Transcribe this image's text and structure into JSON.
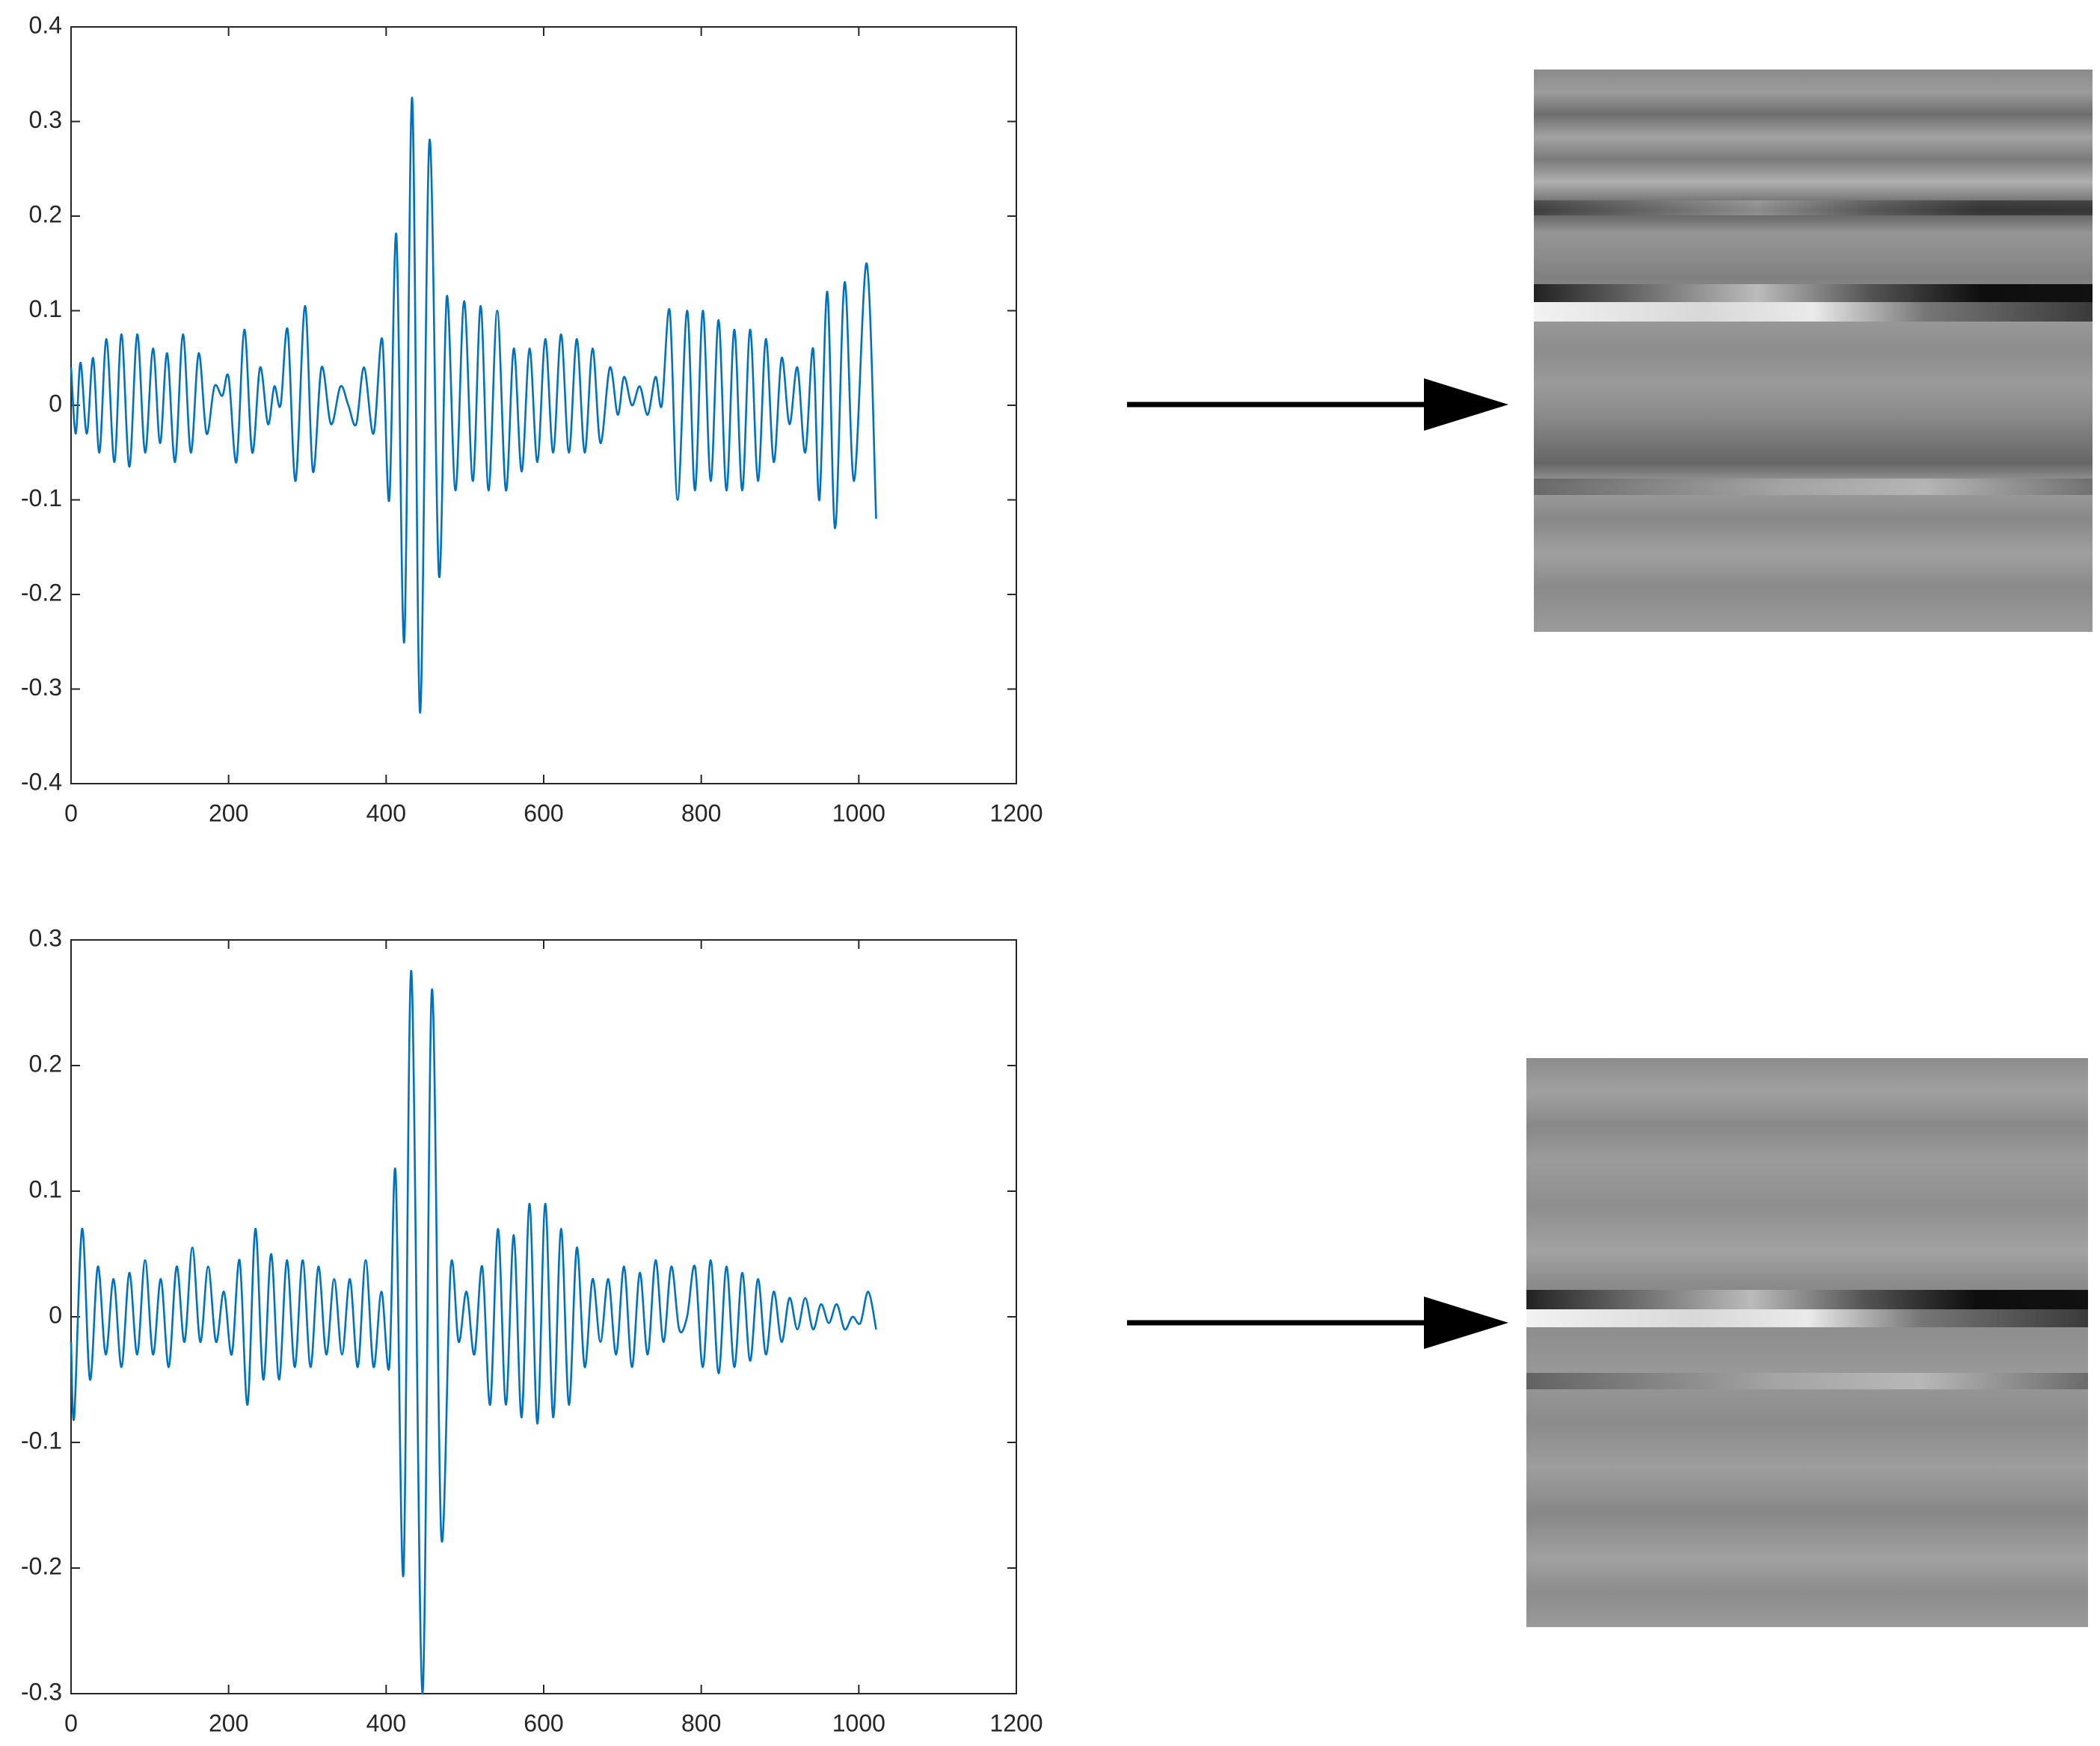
{
  "chart_data": [
    {
      "type": "line",
      "color": "#0072bd",
      "xlim": [
        0,
        1200
      ],
      "xticks": [
        0,
        200,
        400,
        600,
        800,
        1000,
        1200
      ],
      "ylim": [
        -0.4,
        0.4
      ],
      "yticks": [
        -0.4,
        -0.3,
        -0.2,
        -0.1,
        0,
        0.1,
        0.2,
        0.3,
        0.4
      ],
      "x": [
        0,
        6,
        12,
        20,
        28,
        36,
        45,
        55,
        64,
        74,
        84,
        94,
        104,
        113,
        122,
        132,
        142,
        152,
        162,
        172,
        182,
        192,
        200,
        210,
        220,
        230,
        240,
        250,
        258,
        266,
        275,
        285,
        297,
        307,
        318,
        330,
        342,
        352,
        362,
        372,
        384,
        395,
        404,
        413,
        423,
        433,
        443,
        455,
        467,
        477,
        488,
        499,
        510,
        520,
        530,
        541,
        552,
        562,
        572,
        582,
        592,
        602,
        612,
        622,
        632,
        642,
        652,
        662,
        672,
        684,
        694,
        702,
        712,
        722,
        732,
        742,
        750,
        760,
        770,
        782,
        792,
        802,
        812,
        822,
        832,
        842,
        852,
        862,
        872,
        882,
        892,
        902,
        912,
        922,
        932,
        942,
        950,
        960,
        970,
        982,
        994,
        1010,
        1022
      ],
      "values": [
        0.04,
        -0.03,
        0.045,
        -0.03,
        0.05,
        -0.05,
        0.07,
        -0.06,
        0.075,
        -0.065,
        0.075,
        -0.05,
        0.06,
        -0.04,
        0.055,
        -0.06,
        0.075,
        -0.05,
        0.055,
        -0.03,
        0.02,
        0.01,
        0.03,
        -0.06,
        0.08,
        -0.05,
        0.04,
        -0.02,
        0.02,
        0.0,
        0.08,
        -0.08,
        0.105,
        -0.07,
        0.04,
        -0.02,
        0.02,
        0.0,
        -0.02,
        0.04,
        -0.03,
        0.07,
        -0.1,
        0.18,
        -0.25,
        0.325,
        -0.325,
        0.28,
        -0.18,
        0.115,
        -0.09,
        0.11,
        -0.08,
        0.105,
        -0.09,
        0.1,
        -0.09,
        0.06,
        -0.07,
        0.06,
        -0.06,
        0.07,
        -0.05,
        0.075,
        -0.05,
        0.07,
        -0.05,
        0.06,
        -0.04,
        0.04,
        -0.01,
        0.03,
        0.0,
        0.02,
        -0.01,
        0.03,
        0.0,
        0.1,
        -0.1,
        0.1,
        -0.09,
        0.1,
        -0.08,
        0.09,
        -0.09,
        0.08,
        -0.09,
        0.08,
        -0.08,
        0.07,
        -0.06,
        0.05,
        -0.02,
        0.04,
        -0.05,
        0.06,
        -0.1,
        0.12,
        -0.13,
        0.13,
        -0.08,
        0.15,
        -0.12
      ]
    },
    {
      "type": "line",
      "color": "#0072bd",
      "xlim": [
        0,
        1200
      ],
      "xticks": [
        0,
        200,
        400,
        600,
        800,
        1000,
        1200
      ],
      "ylim": [
        -0.3,
        0.3
      ],
      "yticks": [
        -0.3,
        -0.2,
        -0.1,
        0,
        0.1,
        0.2,
        0.3
      ],
      "x": [
        0,
        4,
        14,
        24,
        34,
        44,
        54,
        64,
        74,
        84,
        94,
        104,
        114,
        124,
        134,
        144,
        154,
        164,
        174,
        184,
        194,
        204,
        214,
        224,
        234,
        244,
        254,
        264,
        274,
        284,
        294,
        304,
        314,
        324,
        334,
        344,
        354,
        364,
        374,
        384,
        394,
        404,
        412,
        422,
        432,
        446,
        458,
        470,
        482,
        492,
        502,
        512,
        522,
        532,
        542,
        552,
        562,
        572,
        582,
        592,
        602,
        612,
        622,
        632,
        642,
        652,
        662,
        672,
        682,
        692,
        702,
        712,
        722,
        732,
        742,
        752,
        762,
        772,
        782,
        792,
        802,
        812,
        822,
        832,
        842,
        852,
        862,
        872,
        882,
        892,
        902,
        912,
        922,
        932,
        942,
        952,
        962,
        972,
        982,
        992,
        1002,
        1012,
        1022
      ],
      "values": [
        -0.02,
        -0.08,
        0.07,
        -0.05,
        0.04,
        -0.03,
        0.03,
        -0.04,
        0.035,
        -0.03,
        0.045,
        -0.03,
        0.03,
        -0.04,
        0.04,
        -0.02,
        0.055,
        -0.02,
        0.04,
        -0.02,
        0.02,
        -0.03,
        0.045,
        -0.07,
        0.07,
        -0.05,
        0.05,
        -0.05,
        0.045,
        -0.04,
        0.045,
        -0.04,
        0.04,
        -0.03,
        0.03,
        -0.03,
        0.03,
        -0.04,
        0.045,
        -0.04,
        0.02,
        -0.04,
        0.115,
        -0.205,
        0.275,
        -0.3,
        0.26,
        -0.175,
        0.04,
        -0.02,
        0.02,
        -0.03,
        0.04,
        -0.07,
        0.07,
        -0.07,
        0.065,
        -0.08,
        0.09,
        -0.085,
        0.09,
        -0.08,
        0.07,
        -0.07,
        0.055,
        -0.04,
        0.03,
        -0.02,
        0.03,
        -0.03,
        0.04,
        -0.04,
        0.035,
        -0.03,
        0.045,
        -0.02,
        0.04,
        -0.01,
        0.0,
        0.04,
        -0.04,
        0.045,
        -0.045,
        0.04,
        -0.04,
        0.035,
        -0.035,
        0.03,
        -0.03,
        0.02,
        -0.02,
        0.015,
        -0.01,
        0.015,
        -0.01,
        0.01,
        -0.005,
        0.01,
        -0.01,
        0.0,
        -0.005,
        0.02,
        -0.01
      ]
    }
  ]
}
